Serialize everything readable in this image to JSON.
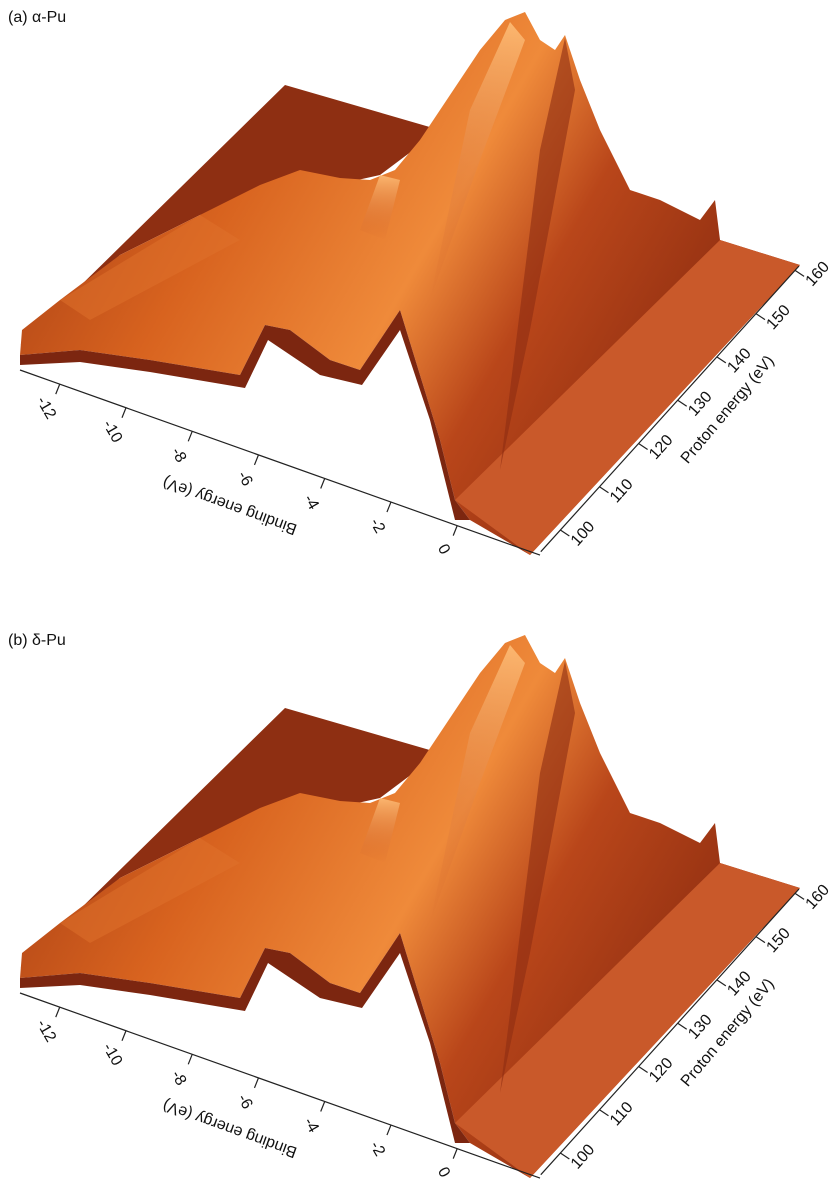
{
  "chart_data": [
    {
      "type": "surface",
      "title": "(a) α-Pu",
      "xlabel": "Binding energy (eV)",
      "ylabel": "Proton energy (eV)",
      "xlim": [
        -13.2,
        2.5
      ],
      "xticks": [
        -12,
        -10,
        -8,
        -6,
        -4,
        -2,
        0
      ],
      "ylim": [
        95,
        161
      ],
      "yticks": [
        100,
        110,
        120,
        130,
        140,
        150,
        160
      ]
    },
    {
      "type": "surface",
      "title": "(b) δ-Pu",
      "xlabel": "Binding energy (eV)",
      "ylabel": "Proton energy (eV)",
      "xlim": [
        -13.2,
        2.5
      ],
      "xticks": [
        -12,
        -10,
        -8,
        -6,
        -4,
        -2,
        0
      ],
      "ylim": [
        95,
        161
      ],
      "yticks": [
        100,
        110,
        120,
        130,
        140,
        150,
        160
      ]
    }
  ]
}
